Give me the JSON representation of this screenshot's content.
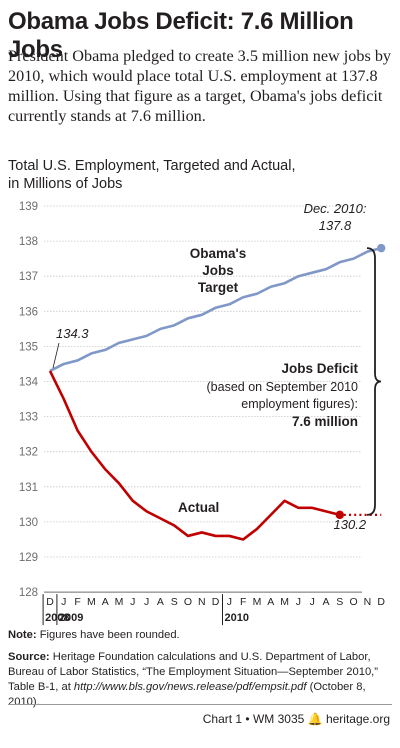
{
  "header": {
    "title": "Obama Jobs Deficit: 7.6 Million Jobs",
    "intro": "President Obama pledged to create 3.5 million new jobs by 2010, which would place total U.S. employment at 137.8 million. Using that figure as a target, Obama's jobs deficit currently stands at 7.6 million."
  },
  "chart_title_line1": "Total U.S. Employment, Targeted and Actual,",
  "chart_title_line2": "in Millions of Jobs",
  "chart_data": {
    "type": "line",
    "ylim": [
      128,
      139
    ],
    "yticks": [
      128,
      129,
      130,
      131,
      132,
      133,
      134,
      135,
      136,
      137,
      138,
      139
    ],
    "month_labels": [
      "D",
      "J",
      "F",
      "M",
      "A",
      "M",
      "J",
      "J",
      "A",
      "S",
      "O",
      "N",
      "D",
      "J",
      "F",
      "M",
      "A",
      "M",
      "J",
      "J",
      "A",
      "S",
      "O",
      "N",
      "D"
    ],
    "year_labels": [
      {
        "label": "2008",
        "index": 0
      },
      {
        "label": "2009",
        "index": 1
      },
      {
        "label": "2010",
        "index": 13
      }
    ],
    "series": [
      {
        "name": "Obama's Jobs Target",
        "color": "#7f98c8",
        "values": [
          134.3,
          134.5,
          134.6,
          134.8,
          134.9,
          135.1,
          135.2,
          135.3,
          135.5,
          135.6,
          135.8,
          135.9,
          136.1,
          136.2,
          136.4,
          136.5,
          136.7,
          136.8,
          137.0,
          137.1,
          137.2,
          137.4,
          137.5,
          137.7,
          137.8
        ]
      },
      {
        "name": "Actual",
        "color": "#c00000",
        "values": [
          134.3,
          133.5,
          132.6,
          132.0,
          131.5,
          131.1,
          130.6,
          130.3,
          130.1,
          129.9,
          129.6,
          129.7,
          129.6,
          129.6,
          129.5,
          129.8,
          130.2,
          130.6,
          130.4,
          130.4,
          130.3,
          130.2
        ],
        "projected_dotted_to": 24
      }
    ],
    "annotations": {
      "start_value": "134.3",
      "end_target_label": "Dec. 2010:",
      "end_target_value": "137.8",
      "target_label_1": "Obama's",
      "target_label_2": "Jobs",
      "target_label_3": "Target",
      "actual_label": "Actual",
      "actual_end_value": "130.2",
      "deficit_title": "Jobs Deficit",
      "deficit_note_1": "(based on September 2010",
      "deficit_note_2": "employment figures):",
      "deficit_value": "7.6 million"
    }
  },
  "notes": {
    "note_label": "Note:",
    "note_text": " Figures have been rounded.",
    "source_label": "Source:",
    "source_text": " Heritage Foundation calculations and U.S. Department of Labor, Bureau of Labor Statistics, “The Employment Situation—September 2010,” Table B-1, at",
    "source_url": "http://www.bls.gov/news.release/pdf/empsit.pdf",
    "source_date": " (October 8, 2010)."
  },
  "footer": {
    "chart_ref": "Chart 1 • WM 3035",
    "site": "heritage.org"
  }
}
